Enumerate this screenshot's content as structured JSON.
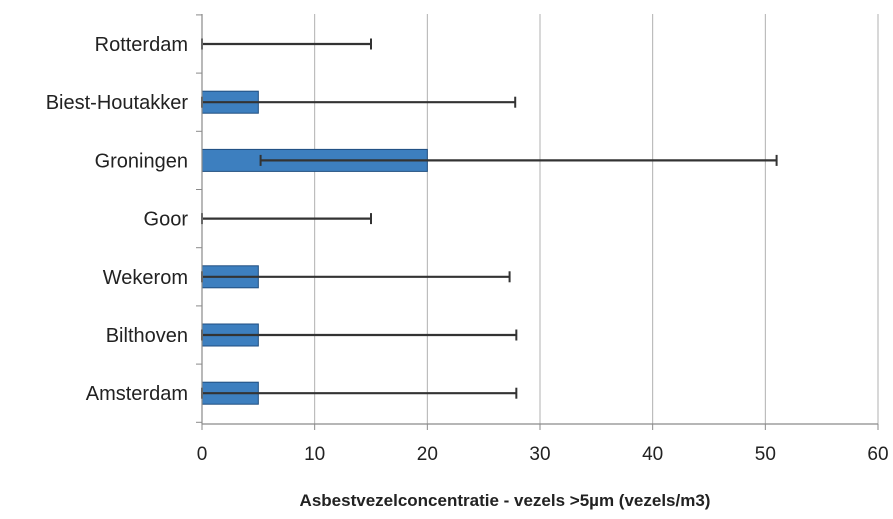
{
  "chart_data": {
    "type": "bar",
    "orientation": "horizontal",
    "title": "",
    "xlabel": "Asbestvezelconcentratie - vezels >5µm (vezels/m3)",
    "ylabel": "",
    "xlim": [
      0,
      60
    ],
    "xticks": [
      0,
      10,
      20,
      30,
      40,
      50,
      60
    ],
    "xtick_labels": [
      "0",
      "10",
      "20",
      "30",
      "40",
      "50",
      "60"
    ],
    "grid": "vertical",
    "legend": "none",
    "categories": [
      "Rotterdam",
      "Biest-Houtakker",
      "Groningen",
      "Goor",
      "Wekerom",
      "Bilthoven",
      "Amsterdam"
    ],
    "values": [
      0,
      5,
      20,
      0,
      5,
      5,
      5
    ],
    "error_low": [
      0,
      0,
      5.2,
      0,
      0,
      0,
      0
    ],
    "error_high": [
      15,
      27.8,
      51,
      15,
      27.3,
      27.9,
      27.9
    ],
    "colors": {
      "bar_fill": "#3d7fbf",
      "bar_stroke": "#1f4e80",
      "error_bar": "#333333",
      "grid": "#b0b0b0",
      "axis": "#8a8a8a"
    }
  }
}
